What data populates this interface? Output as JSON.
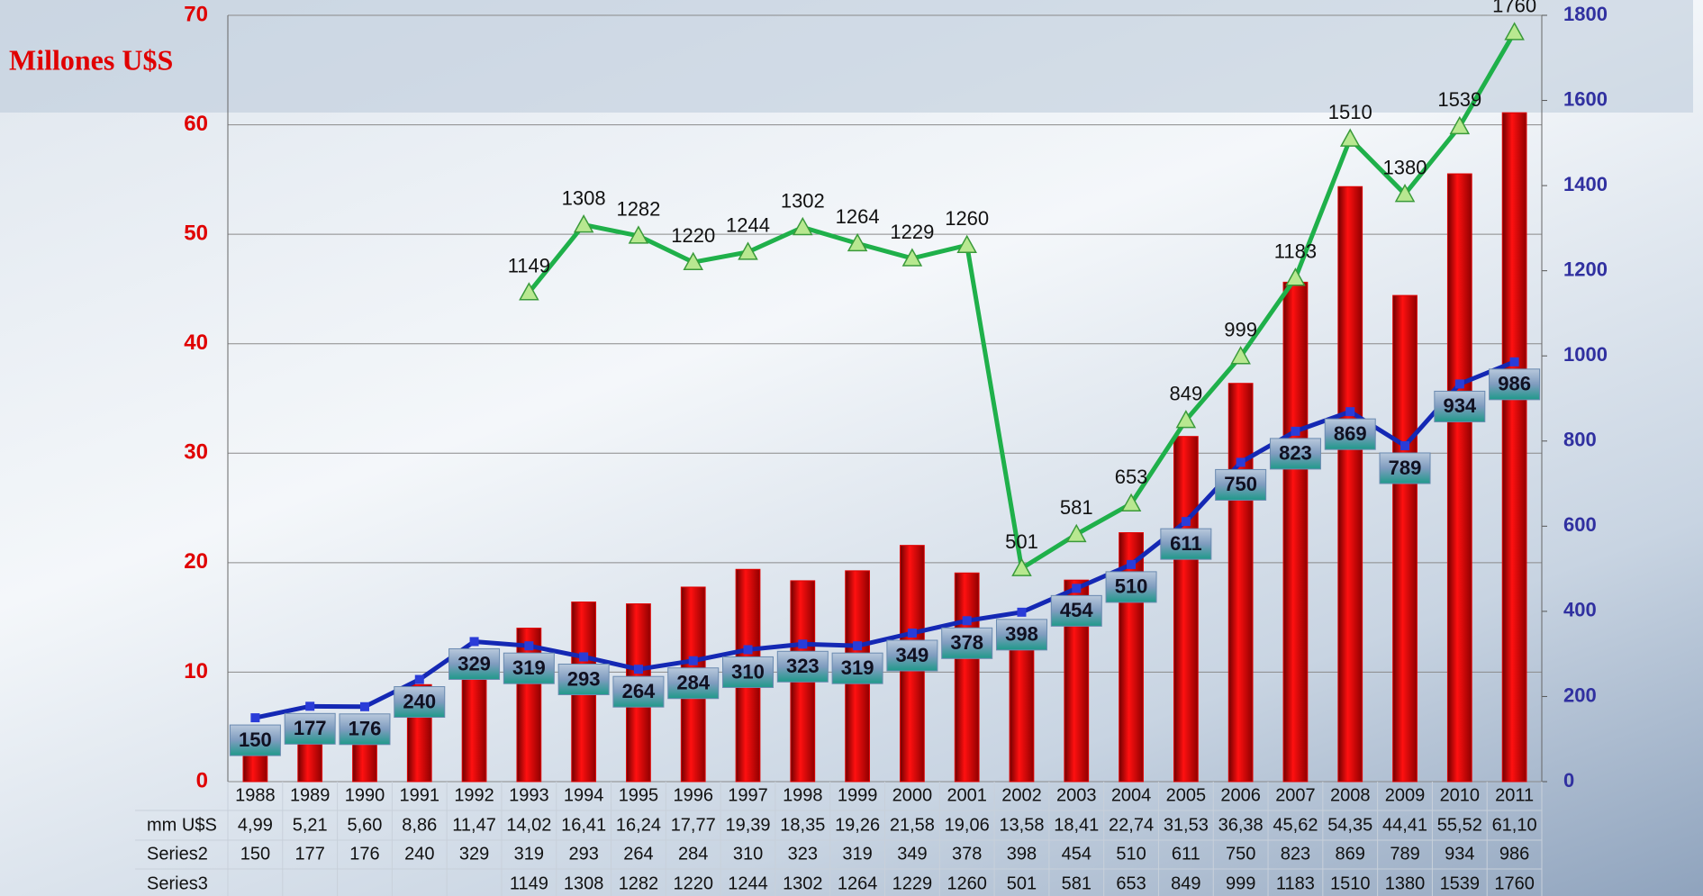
{
  "chart_data": {
    "type": "bar-line",
    "title": "Millones U$S",
    "categories": [
      "1988",
      "1989",
      "1990",
      "1991",
      "1992",
      "1993",
      "1994",
      "1995",
      "1996",
      "1997",
      "1998",
      "1999",
      "2000",
      "2001",
      "2002",
      "2003",
      "2004",
      "2005",
      "2006",
      "2007",
      "2008",
      "2009",
      "2010",
      "2011"
    ],
    "series": [
      {
        "name": "mm U$S",
        "type": "bar",
        "color": "#e00000",
        "values": [
          4.99,
          5.21,
          5.6,
          8.86,
          11.47,
          14.02,
          16.41,
          16.24,
          17.77,
          19.39,
          18.35,
          19.26,
          21.58,
          19.06,
          13.58,
          18.41,
          22.74,
          31.53,
          36.38,
          45.62,
          54.35,
          44.41,
          55.52,
          61.1
        ],
        "value_labels": [
          "4,99",
          "5,21",
          "5,60",
          "8,86",
          "11,47",
          "14,02",
          "16,41",
          "16,24",
          "17,77",
          "19,39",
          "18,35",
          "19,26",
          "21,58",
          "19,06",
          "13,58",
          "18,41",
          "22,74",
          "31,53",
          "36,38",
          "45,62",
          "54,35",
          "44,41",
          "55,52",
          "61,10"
        ]
      },
      {
        "name": "Series2",
        "type": "line",
        "axis": "y2",
        "color": "#1428b4",
        "values": [
          150,
          177,
          176,
          240,
          329,
          319,
          293,
          264,
          284,
          310,
          323,
          319,
          349,
          378,
          398,
          454,
          510,
          611,
          750,
          823,
          869,
          789,
          934,
          986
        ]
      },
      {
        "name": "Series3",
        "type": "line",
        "axis": "y2",
        "color": "#1fb04a",
        "values": [
          null,
          null,
          null,
          null,
          null,
          1149,
          1308,
          1282,
          1220,
          1244,
          1302,
          1264,
          1229,
          1260,
          501,
          581,
          653,
          849,
          999,
          1183,
          1510,
          1380,
          1539,
          1760
        ]
      }
    ],
    "ylim": [
      0,
      70
    ],
    "yticks": [
      0,
      10,
      20,
      30,
      40,
      50,
      60,
      70
    ],
    "y2lim": [
      0,
      1800
    ],
    "y2ticks": [
      0,
      200,
      400,
      600,
      800,
      1000,
      1200,
      1400,
      1600,
      1800
    ],
    "grid": true
  }
}
